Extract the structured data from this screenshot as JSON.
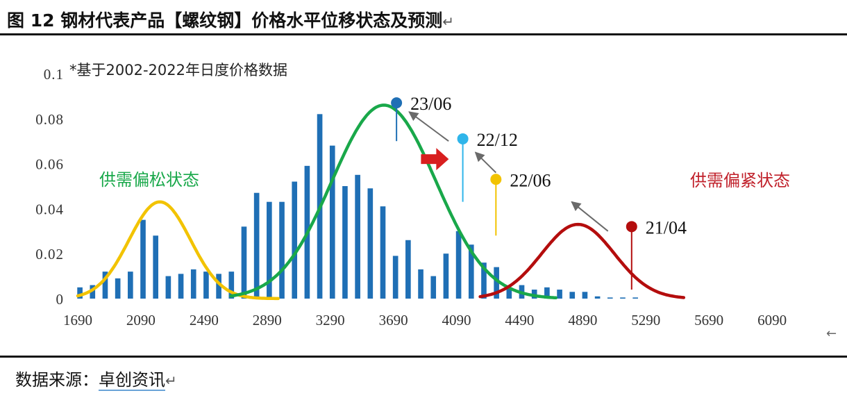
{
  "title": "图 12 钢材代表产品【螺纹钢】价格水平位移状态及预测",
  "title_mark": "↵",
  "source": {
    "prefix": "数据来源：",
    "name": "卓创资讯",
    "mark": "↵"
  },
  "right_mark": "←",
  "colors": {
    "bar": "#1f6fb5",
    "loose_curve": "#f2c300",
    "mid_curve": "#19a84a",
    "tight_curve": "#b40d0d",
    "loose_text": "#19a84a",
    "tight_text": "#c0202a",
    "arrow_red": "#d81f1f",
    "arrow_gray": "#6a6a6a",
    "marker_2306": "#1f6fb5",
    "marker_2212": "#2fb5ea",
    "marker_2206": "#f2c300",
    "marker_2104": "#b40d0d"
  },
  "chart_data": {
    "type": "bar",
    "subtitle": "*基于2002-2022年日度价格数据",
    "xlabel": "",
    "ylabel": "",
    "xlim": [
      1690,
      6160
    ],
    "ylim": [
      0,
      0.1
    ],
    "x_ticks": [
      "1690",
      "2090",
      "2490",
      "2890",
      "3290",
      "3690",
      "4090",
      "4490",
      "4890",
      "5290",
      "5690",
      "6090"
    ],
    "y_ticks": [
      "0",
      "0.02",
      "0.04",
      "0.06",
      "0.08",
      "0.1"
    ],
    "bins": {
      "start": 1690,
      "step": 80,
      "values": [
        0.005,
        0.006,
        0.012,
        0.009,
        0.012,
        0.035,
        0.028,
        0.01,
        0.011,
        0.013,
        0.012,
        0.011,
        0.012,
        0.032,
        0.047,
        0.043,
        0.043,
        0.052,
        0.059,
        0.082,
        0.068,
        0.05,
        0.055,
        0.049,
        0.041,
        0.019,
        0.026,
        0.013,
        0.01,
        0.02,
        0.03,
        0.024,
        0.016,
        0.014,
        0.005,
        0.006,
        0.004,
        0.005,
        0.004,
        0.003,
        0.003,
        0.001,
        0.0005,
        0.0005,
        0.0005
      ]
    },
    "curves": [
      {
        "key": "loose",
        "mean": 2210,
        "sd": 195,
        "peak": 0.043,
        "from": 1690,
        "to": 2960
      },
      {
        "key": "mid",
        "mean": 3630,
        "sd": 330,
        "peak": 0.086,
        "from": 2660,
        "to": 4720
      },
      {
        "key": "tight",
        "mean": 4860,
        "sd": 230,
        "peak": 0.033,
        "from": 4240,
        "to": 5530
      }
    ],
    "annotations": {
      "loose_label": "供需偏松状态",
      "tight_label": "供需偏紧状态",
      "markers": [
        {
          "label": "23/06",
          "x": 3710,
          "top": 0.087,
          "bottom": 0.07
        },
        {
          "label": "22/12",
          "x": 4130,
          "top": 0.071,
          "bottom": 0.043
        },
        {
          "label": "22/06",
          "x": 4340,
          "top": 0.053,
          "bottom": 0.028
        },
        {
          "label": "21/04",
          "x": 5200,
          "top": 0.032,
          "bottom": 0.004
        }
      ]
    }
  }
}
